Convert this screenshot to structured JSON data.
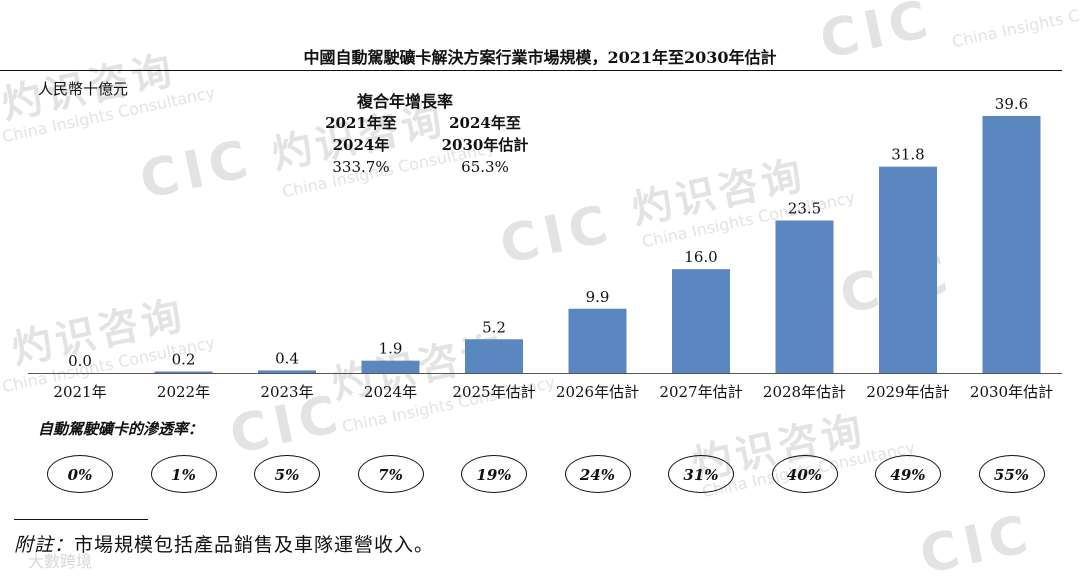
{
  "title": "中國自動駕駛礦卡解決方案行業市場規模，2021年至2030年估計",
  "unit": "人民幣十億元",
  "cagr": {
    "heading": "複合年增長率",
    "periods": [
      {
        "period_line1": "2021年至",
        "period_line2": "2024年",
        "value": "333.7%"
      },
      {
        "period_line1": "2024年至",
        "period_line2": "2030年估計",
        "value": "65.3%"
      }
    ]
  },
  "chart_data": {
    "type": "bar",
    "title": "中國自動駕駛礦卡解決方案行業市場規模，2021年至2030年估計",
    "ylabel": "人民幣十億元",
    "categories": [
      "2021年",
      "2022年",
      "2023年",
      "2024年",
      "2025年估計",
      "2026年估計",
      "2027年估計",
      "2028年估計",
      "2029年估計",
      "2030年估計"
    ],
    "values": [
      0.0,
      0.2,
      0.4,
      1.9,
      5.2,
      9.9,
      16.0,
      23.5,
      31.8,
      39.6
    ],
    "value_labels": [
      "0.0",
      "0.2",
      "0.4",
      "1.9",
      "5.2",
      "9.9",
      "16.0",
      "23.5",
      "31.8",
      "39.6"
    ],
    "ylim": [
      0,
      40
    ],
    "grid": false,
    "bar_color": "#5b87c0"
  },
  "penetration": {
    "label": "自動駕駛礦卡的滲透率：",
    "values": [
      "0%",
      "1%",
      "5%",
      "7%",
      "19%",
      "24%",
      "31%",
      "40%",
      "49%",
      "55%"
    ]
  },
  "note": {
    "label": "附註：",
    "text": "市場規模包括產品銷售及車隊運營收入。"
  },
  "watermarks": {
    "brand": "CIC",
    "cn": "灼识咨询",
    "en": "China Insights Consultancy",
    "footer": "大數跨境"
  }
}
